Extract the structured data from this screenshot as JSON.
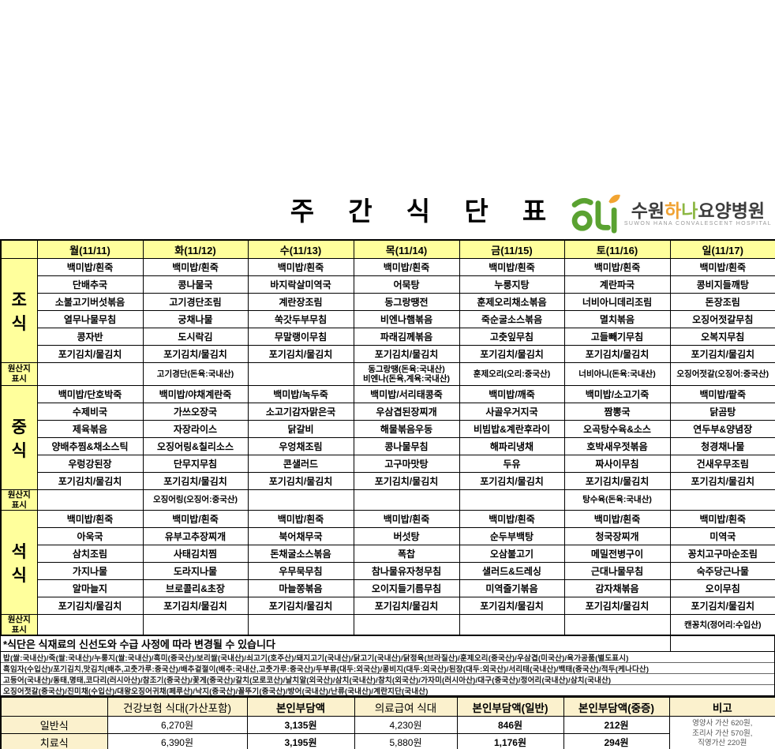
{
  "title": "주 간 식 단 표",
  "logo": {
    "name_prefix": "수원",
    "name_hana_1": "하",
    "name_hana_2": "나",
    "name_suffix": "요양병원",
    "subtitle": "SUWON HANA CONVALESCENT HOSPITAL",
    "brand_green": "#5aa231",
    "brand_orange": "#f2a431"
  },
  "menu": {
    "days": [
      "월(11/11)",
      "화(11/12)",
      "수(11/13)",
      "목(11/14)",
      "금(11/15)",
      "토(11/16)",
      "일(11/17)"
    ],
    "origin_label": "원산지\n표시",
    "meals": [
      {
        "label_chars": [
          "조",
          "식"
        ],
        "rows": [
          [
            "백미밥/흰죽",
            "백미밥/흰죽",
            "백미밥/흰죽",
            "백미밥/흰죽",
            "백미밥/흰죽",
            "백미밥/흰죽",
            "백미밥/흰죽"
          ],
          [
            "단배추국",
            "콩나물국",
            "바지락살미역국",
            "어묵탕",
            "누룽지탕",
            "계란파국",
            "콩비지들깨탕"
          ],
          [
            "소불고기버섯볶음",
            "고기경단조림",
            "계란장조림",
            "동그랑땡전",
            "훈제오리채소볶음",
            "너비아니데리조림",
            "돈장조림"
          ],
          [
            "열무나물무침",
            "궁채나물",
            "쑥갓두부무침",
            "비엔나햄볶음",
            "죽순굴소스볶음",
            "멸치볶음",
            "오징어젓갈무침"
          ],
          [
            "콩자반",
            "도시락김",
            "무말랭이무침",
            "파래김께볶음",
            "고춧잎무침",
            "고들빼기무침",
            "오복지무침"
          ],
          [
            "포기김치/물김치",
            "포기김치/물김치",
            "포기김치/물김치",
            "포기김치/물김치",
            "포기김치/물김치",
            "포기김치/물김치",
            "포기김치/물김치"
          ]
        ],
        "origin": [
          "",
          "고기경단(돈육:국내산)",
          "",
          "동그랑땡(돈육:국내산)\n비엔나(돈육,계육:국내산)",
          "훈제오리(오리:중국산)",
          "너비아니(돈육:국내산)",
          "오징어젓갈(오징어:중국산)"
        ]
      },
      {
        "label_chars": [
          "중",
          "식"
        ],
        "rows": [
          [
            "백미밥/단호박죽",
            "백미밥/야채계란죽",
            "백미밥/녹두죽",
            "백미밥/서리태콩죽",
            "백미밥/깨죽",
            "백미밥/소고기죽",
            "백미밥/팥죽"
          ],
          [
            "수제비국",
            "가쓰오장국",
            "소고기감자맑은국",
            "우삼겹된장찌개",
            "사골우거지국",
            "짬뽕국",
            "닭곰탕"
          ],
          [
            "제육볶음",
            "자장라이스",
            "닭갈비",
            "해물볶음우동",
            "비빔밥&계란후라이",
            "오곡탕수육&소스",
            "연두부&양념장"
          ],
          [
            "양배추찜&채소스틱",
            "오징어링&칠리소스",
            "우엉채조림",
            "콩나물무침",
            "해파리냉채",
            "호박새우젓볶음",
            "청경채나물"
          ],
          [
            "우렁강된장",
            "단무지무침",
            "콘샐러드",
            "고구마맛탕",
            "두유",
            "짜사이무침",
            "건새우무조림"
          ],
          [
            "포기김치/물김치",
            "포기김치/물김치",
            "포기김치/물김치",
            "포기김치/물김치",
            "포기김치/물김치",
            "포기김치/물김치",
            "포기김치/물김치"
          ]
        ],
        "origin": [
          "",
          "오징어링(오징어:중국산)",
          "",
          "",
          "",
          "탕수육(돈육:국내산)",
          ""
        ]
      },
      {
        "label_chars": [
          "석",
          "식"
        ],
        "rows": [
          [
            "백미밥/흰죽",
            "백미밥/흰죽",
            "백미밥/흰죽",
            "백미밥/흰죽",
            "백미밥/흰죽",
            "백미밥/흰죽",
            "백미밥/흰죽"
          ],
          [
            "아욱국",
            "유부고추장찌개",
            "북어채무국",
            "버섯탕",
            "순두부백탕",
            "청국장찌개",
            "미역국"
          ],
          [
            "삼치조림",
            "사태김치찜",
            "돈채굴소스볶음",
            "폭찹",
            "오삼불고기",
            "메밀전병구이",
            "꽁치고구마순조림"
          ],
          [
            "가지나물",
            "도라지나물",
            "우무묵무침",
            "참나물유자청무침",
            "샐러드&드레싱",
            "근대나물무침",
            "숙주당근나물"
          ],
          [
            "알마늘지",
            "브로콜리&초장",
            "마늘쫑볶음",
            "오이지들기름무침",
            "미역줄기볶음",
            "감자채볶음",
            "오이무침"
          ],
          [
            "포기김치/물김치",
            "포기김치/물김치",
            "포기김치/물김치",
            "포기김치/물김치",
            "포기김치/물김치",
            "포기김치/물김치",
            "포기김치/물김치"
          ]
        ],
        "origin": [
          "",
          "",
          "",
          "",
          "",
          "",
          "캔꽁치(정어리:수입산)"
        ]
      }
    ]
  },
  "notice": "*식단은 식재료의  신선도와 수급 사정에 따라 변경될 수 있습니다",
  "origin_notes": [
    "밥(쌀:국내산)/죽(쌀:국내산)/누룽지(쌀:국내산)/흑미(중국산)/보리쌀(국내산)/쇠고기(호주산)/돼지고기(국내산)/닭고기(국내산)/닭정육(브라질산)/훈제오리(중국산)/우삼겹(미국산)/육가공품(별도표시)",
    "흑임자(수입산)/포기김치,맛김치(배추,고춧가루:중국산)/배추겉절이(배추:국내산,고춧가루:중국산)/두부류(대두:외국산)/콩비지(대두:외국산)/된장(대두:외국산)/서리태(국내산)/백태(중국산)/적두(케나다산)",
    "고등어(국내산)/동태,명태,코다리(러시아산)/참조기(중국산)/꽃게(중국산)/갈치(모로코산)/날치알(외국산)/삼치(국내산)/참치(외국산)/가자미(러시아산)/대구(중국산)/정어리(국내산)/삼치(국내산)",
    "오징어젓갈(중국산)/진미채(수입산)/대왕오징어귀채(페루산)/낙지(중국산)/꼴뚜기(중국산)/방어(국내산)/난류(국내산)/계란지단(국내산)"
  ],
  "price": {
    "headers": [
      "건강보험 식대(가산포함)",
      "본인부담액",
      "의료급여 식대",
      "본인부담액(일반)",
      "본인부담액(중증)",
      "비고"
    ],
    "rows": [
      {
        "label": "일반식",
        "values": [
          "6,270원",
          "3,135원",
          "4,230원",
          "846원",
          "212원"
        ]
      },
      {
        "label": "치료식",
        "values": [
          "6,390원",
          "3,195원",
          "5,880원",
          "1,176원",
          "294원"
        ]
      }
    ],
    "remark_lines": [
      "영양사 가산 620원,",
      "조리사 가산 570원,",
      "직영가산 220원"
    ]
  },
  "colors": {
    "table_yellow": "#ffff9c",
    "price_yellow": "#fbf1cd"
  }
}
